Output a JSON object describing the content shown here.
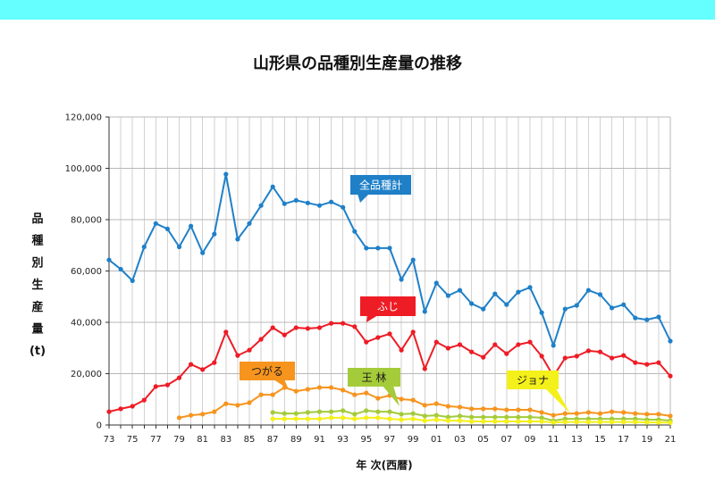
{
  "chart_data": {
    "type": "line",
    "title": "山形県の品種別生産量の推移",
    "xlabel": "年 次(西暦)",
    "ylabel": "品種別生産量(t)",
    "x": [
      1973,
      1974,
      1975,
      1976,
      1977,
      1978,
      1979,
      1980,
      1981,
      1982,
      1983,
      1984,
      1985,
      1986,
      1987,
      1988,
      1989,
      1990,
      1991,
      1992,
      1993,
      1994,
      1995,
      1996,
      1997,
      1998,
      1999,
      2000,
      2001,
      2002,
      2003,
      2004,
      2005,
      2006,
      2007,
      2008,
      2009,
      2010,
      2011,
      2012,
      2013,
      2014,
      2015,
      2016,
      2017,
      2018,
      2019,
      2020,
      2021
    ],
    "xlim": [
      1973,
      2021
    ],
    "ylim": [
      0,
      120000
    ],
    "x_ticks": [
      {
        "value": 1973,
        "label": "73"
      },
      {
        "value": 1975,
        "label": "75"
      },
      {
        "value": 1977,
        "label": "77"
      },
      {
        "value": 1979,
        "label": "79"
      },
      {
        "value": 1981,
        "label": "81"
      },
      {
        "value": 1983,
        "label": "83"
      },
      {
        "value": 1985,
        "label": "85"
      },
      {
        "value": 1987,
        "label": "87"
      },
      {
        "value": 1989,
        "label": "89"
      },
      {
        "value": 1991,
        "label": "91"
      },
      {
        "value": 1993,
        "label": "93"
      },
      {
        "value": 1995,
        "label": "95"
      },
      {
        "value": 1997,
        "label": "97"
      },
      {
        "value": 1999,
        "label": "99"
      },
      {
        "value": 2001,
        "label": "01"
      },
      {
        "value": 2003,
        "label": "03"
      },
      {
        "value": 2005,
        "label": "05"
      },
      {
        "value": 2007,
        "label": "07"
      },
      {
        "value": 2009,
        "label": "09"
      },
      {
        "value": 2011,
        "label": "11"
      },
      {
        "value": 2013,
        "label": "13"
      },
      {
        "value": 2015,
        "label": "15"
      },
      {
        "value": 2017,
        "label": "17"
      },
      {
        "value": 2019,
        "label": "19"
      },
      {
        "value": 2021,
        "label": "21"
      }
    ],
    "y_ticks": [
      {
        "value": 0,
        "label": "0"
      },
      {
        "value": 20000,
        "label": "20,000"
      },
      {
        "value": 40000,
        "label": "40,000"
      },
      {
        "value": 60000,
        "label": "60,000"
      },
      {
        "value": 80000,
        "label": "80,000"
      },
      {
        "value": 100000,
        "label": "100,000"
      },
      {
        "value": 120000,
        "label": "120,000"
      }
    ],
    "grid": {
      "x": true,
      "y": true
    },
    "series": [
      {
        "name": "全品種計",
        "color": "#1f80c8",
        "values": [
          64300,
          60700,
          56200,
          69400,
          78500,
          76400,
          69400,
          77500,
          67100,
          74400,
          97700,
          72400,
          78500,
          85500,
          92800,
          86200,
          87500,
          86500,
          85500,
          86900,
          84800,
          75400,
          68900,
          68900,
          68900,
          56700,
          64300,
          44200,
          55300,
          50400,
          52500,
          47300,
          45200,
          51100,
          46900,
          51800,
          53600,
          43800,
          31000,
          45200,
          46600,
          52500,
          50800,
          45600,
          46900,
          41700,
          41000,
          42100,
          32700
        ]
      },
      {
        "name": "ふじ",
        "color": "#ee1c25",
        "values": [
          5200,
          6300,
          7300,
          9700,
          15000,
          15600,
          18400,
          23600,
          21600,
          24300,
          36200,
          27100,
          29200,
          33400,
          37900,
          35100,
          37900,
          37600,
          37900,
          39600,
          39600,
          38300,
          32300,
          34100,
          35500,
          29200,
          36200,
          21900,
          32300,
          29900,
          31300,
          28500,
          26400,
          31300,
          27800,
          31300,
          32300,
          26800,
          19000,
          26100,
          26800,
          28900,
          28500,
          26100,
          27100,
          24300,
          23600,
          24300,
          19100
        ]
      },
      {
        "name": "つがる",
        "color": "#f7941e",
        "values": [
          null,
          null,
          null,
          null,
          null,
          null,
          2800,
          3800,
          4200,
          5200,
          8300,
          7700,
          8700,
          11800,
          11800,
          14600,
          13200,
          13900,
          14600,
          14600,
          13600,
          11800,
          12500,
          10400,
          11500,
          10100,
          9700,
          7700,
          8300,
          7300,
          7000,
          6300,
          6300,
          6300,
          5900,
          5900,
          5900,
          4900,
          3800,
          4500,
          4500,
          4900,
          4500,
          5200,
          4900,
          4500,
          4200,
          4200,
          3500
        ]
      },
      {
        "name": "王 林",
        "color": "#a4cb3a",
        "values": [
          null,
          null,
          null,
          null,
          null,
          null,
          null,
          null,
          null,
          null,
          null,
          null,
          null,
          null,
          4900,
          4500,
          4500,
          4900,
          5200,
          5200,
          5600,
          4200,
          5600,
          5200,
          5200,
          4200,
          4500,
          3500,
          3800,
          3100,
          3500,
          3100,
          3100,
          3100,
          3100,
          3100,
          3100,
          2800,
          1700,
          2400,
          2400,
          2400,
          2400,
          2400,
          2400,
          2400,
          2100,
          2100,
          1700
        ]
      },
      {
        "name": "ジョナ",
        "color": "#f4f01a",
        "values": [
          null,
          null,
          null,
          null,
          null,
          null,
          null,
          null,
          null,
          null,
          null,
          null,
          null,
          null,
          2400,
          2400,
          2400,
          2400,
          2400,
          2800,
          2800,
          2400,
          2800,
          2800,
          2400,
          2100,
          2400,
          1700,
          2100,
          1700,
          1700,
          1400,
          1400,
          1400,
          1400,
          1400,
          1400,
          1400,
          1000,
          1200,
          1200,
          1200,
          1200,
          1200,
          1200,
          1200,
          1000,
          1000,
          900
        ]
      }
    ]
  }
}
